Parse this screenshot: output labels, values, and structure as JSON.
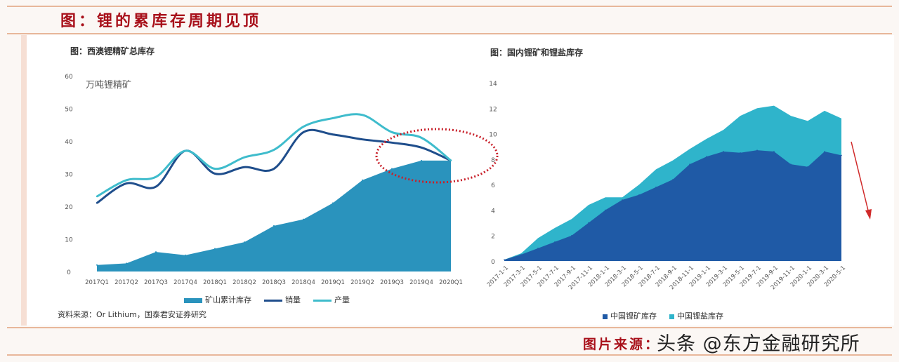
{
  "header": {
    "title": "图：锂的累库存周期见顶"
  },
  "footer": {
    "source_label": "图片来源：",
    "watermark": "头条 @东方金融研究所"
  },
  "chart_data": [
    {
      "type": "area+line",
      "title": "图：西澳锂精矿总库存",
      "ylabel": "万吨锂精矿",
      "ylim": [
        0,
        60
      ],
      "yticks": [
        0,
        10,
        20,
        30,
        40,
        50,
        60
      ],
      "categories": [
        "2017Q1",
        "2017Q2",
        "2017Q3",
        "2017Q4",
        "2018Q1",
        "2018Q2",
        "2018Q3",
        "2018Q4",
        "2019Q1",
        "2019Q2",
        "2019Q3",
        "2019Q4",
        "2020Q1"
      ],
      "series": [
        {
          "name": "矿山累计库存",
          "kind": "area",
          "color": "#2a93bd",
          "values": [
            2,
            2.5,
            6,
            5,
            7,
            9,
            14,
            16,
            21,
            28,
            31.5,
            34,
            34
          ]
        },
        {
          "name": "销量",
          "kind": "line",
          "color": "#1f4e8c",
          "values": [
            21,
            27,
            26,
            37,
            30,
            32,
            31.5,
            42.7,
            42,
            40.5,
            39.5,
            38,
            34
          ]
        },
        {
          "name": "产量",
          "kind": "line",
          "color": "#3fbccc",
          "values": [
            23,
            28,
            29,
            37,
            31.5,
            35,
            37.3,
            44.4,
            47,
            48,
            42.7,
            41,
            34
          ]
        }
      ],
      "source": "资料来源：Or Lithium，国泰君安证券研究",
      "annotation": "red dotted ellipse around 2019Q3–2020Q1"
    },
    {
      "type": "stacked-area",
      "title": "图：国内锂矿和锂盐库存",
      "ylim": [
        0,
        14
      ],
      "yticks": [
        0,
        2,
        4,
        6,
        8,
        10,
        12,
        14
      ],
      "categories": [
        "2017-1-1",
        "2017-3-1",
        "2017-5-1",
        "2017-7-1",
        "2017-9-1",
        "2017-11-1",
        "2018-1-1",
        "2018-3-1",
        "2018-5-1",
        "2018-7-1",
        "2018-9-1",
        "2018-11-1",
        "2019-1-1",
        "2019-3-1",
        "2019-5-1",
        "2019-7-1",
        "2019-9-1",
        "2019-11-1",
        "2020-1-1",
        "2020-3-1",
        "2020-5-1"
      ],
      "series": [
        {
          "name": "中国锂矿库存",
          "color": "#1f5aa6",
          "values": [
            0.1,
            0.5,
            1.0,
            1.5,
            2.0,
            3.0,
            4.0,
            4.8,
            5.2,
            5.8,
            6.4,
            7.6,
            8.2,
            8.6,
            8.5,
            8.7,
            8.6,
            7.6,
            7.4,
            8.6,
            8.3
          ]
        },
        {
          "name": "中国锂盐库存",
          "color": "#2fb4cb",
          "values": [
            0,
            0.1,
            0.8,
            1.1,
            1.3,
            1.4,
            1.0,
            0.2,
            0.8,
            1.4,
            1.5,
            1.2,
            1.4,
            1.7,
            2.9,
            3.3,
            3.6,
            3.8,
            3.6,
            3.2,
            2.9
          ]
        }
      ],
      "annotation": "red downward arrow"
    }
  ]
}
